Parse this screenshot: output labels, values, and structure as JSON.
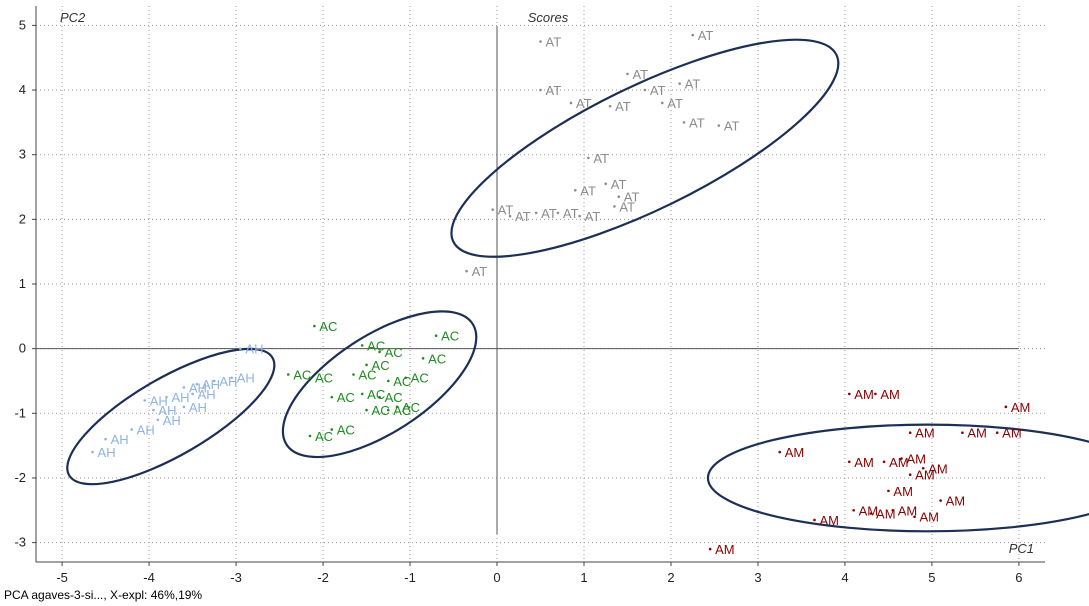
{
  "chart_data": {
    "type": "scatter",
    "title": "Scores",
    "xlabel": "PC1",
    "ylabel": "PC2",
    "xlim": [
      -5.3,
      6.3
    ],
    "ylim": [
      -3.3,
      5.3
    ],
    "xticks": [
      -5,
      -4,
      -3,
      -2,
      -1,
      0,
      1,
      2,
      3,
      4,
      5,
      6
    ],
    "yticks": [
      -3,
      -2,
      -1,
      0,
      1,
      2,
      3,
      4,
      5
    ],
    "grid": true,
    "footer": "PCA agaves-3-si..., X-expl: 46%,19%",
    "colors": {
      "AT": "#8c8c8c",
      "AC": "#1e8c1e",
      "AH": "#8fb3e3",
      "AM": "#8b0000",
      "ellipse": "#1c2f55",
      "axis": "#555555"
    },
    "ellipses": [
      {
        "group": "AT",
        "cx": 1.7,
        "cy": 3.1,
        "rx": 4.9,
        "ry": 1.9,
        "angle_deg": -26
      },
      {
        "group": "AC",
        "cx": -1.35,
        "cy": -0.55,
        "rx": 2.55,
        "ry": 1.5,
        "angle_deg": -33
      },
      {
        "group": "AH",
        "cx": -3.75,
        "cy": -1.05,
        "rx": 2.7,
        "ry": 1.2,
        "angle_deg": -30
      },
      {
        "group": "AM",
        "cx": 4.95,
        "cy": -2.0,
        "rx": 5.05,
        "ry": 1.65,
        "angle_deg": 0
      }
    ],
    "series": [
      {
        "name": "AT",
        "points": [
          [
            0.5,
            4.75
          ],
          [
            2.25,
            4.85
          ],
          [
            1.5,
            4.25
          ],
          [
            2.1,
            4.1
          ],
          [
            0.5,
            4.0
          ],
          [
            1.7,
            4.0
          ],
          [
            0.85,
            3.8
          ],
          [
            1.3,
            3.75
          ],
          [
            1.9,
            3.8
          ],
          [
            2.15,
            3.5
          ],
          [
            2.55,
            3.45
          ],
          [
            1.05,
            2.95
          ],
          [
            0.9,
            2.45
          ],
          [
            1.25,
            2.55
          ],
          [
            1.4,
            2.35
          ],
          [
            1.35,
            2.2
          ],
          [
            0.45,
            2.1
          ],
          [
            0.7,
            2.1
          ],
          [
            -0.05,
            2.15
          ],
          [
            0.15,
            2.05
          ],
          [
            0.95,
            2.05
          ],
          [
            -0.35,
            1.2
          ]
        ]
      },
      {
        "name": "AC",
        "points": [
          [
            -2.1,
            0.35
          ],
          [
            -0.7,
            0.2
          ],
          [
            -1.55,
            0.05
          ],
          [
            -1.35,
            -0.05
          ],
          [
            -0.85,
            -0.15
          ],
          [
            -1.5,
            -0.25
          ],
          [
            -2.4,
            -0.4
          ],
          [
            -2.15,
            -0.45
          ],
          [
            -1.65,
            -0.4
          ],
          [
            -1.25,
            -0.5
          ],
          [
            -1.05,
            -0.45
          ],
          [
            -1.9,
            -0.75
          ],
          [
            -1.55,
            -0.7
          ],
          [
            -1.35,
            -0.75
          ],
          [
            -1.5,
            -0.95
          ],
          [
            -1.25,
            -0.95
          ],
          [
            -1.15,
            -0.9
          ],
          [
            -1.9,
            -1.25
          ],
          [
            -2.15,
            -1.35
          ]
        ]
      },
      {
        "name": "AH",
        "points": [
          [
            -2.95,
            0.0
          ],
          [
            -3.05,
            -0.45
          ],
          [
            -3.25,
            -0.5
          ],
          [
            -3.45,
            -0.55
          ],
          [
            -3.6,
            -0.6
          ],
          [
            -3.5,
            -0.7
          ],
          [
            -3.8,
            -0.75
          ],
          [
            -4.05,
            -0.8
          ],
          [
            -3.6,
            -0.9
          ],
          [
            -3.95,
            -0.95
          ],
          [
            -3.9,
            -1.1
          ],
          [
            -4.2,
            -1.25
          ],
          [
            -4.5,
            -1.4
          ],
          [
            -4.65,
            -1.6
          ]
        ]
      },
      {
        "name": "AM",
        "points": [
          [
            4.05,
            -0.7
          ],
          [
            4.35,
            -0.7
          ],
          [
            5.85,
            -0.9
          ],
          [
            4.75,
            -1.3
          ],
          [
            5.35,
            -1.3
          ],
          [
            5.75,
            -1.3
          ],
          [
            3.25,
            -1.6
          ],
          [
            4.05,
            -1.75
          ],
          [
            4.45,
            -1.75
          ],
          [
            4.65,
            -1.7
          ],
          [
            4.9,
            -1.85
          ],
          [
            4.75,
            -1.95
          ],
          [
            4.5,
            -2.2
          ],
          [
            4.1,
            -2.5
          ],
          [
            4.3,
            -2.55
          ],
          [
            4.55,
            -2.5
          ],
          [
            5.1,
            -2.35
          ],
          [
            4.8,
            -2.6
          ],
          [
            3.65,
            -2.65
          ],
          [
            2.45,
            -3.1
          ]
        ]
      }
    ]
  }
}
